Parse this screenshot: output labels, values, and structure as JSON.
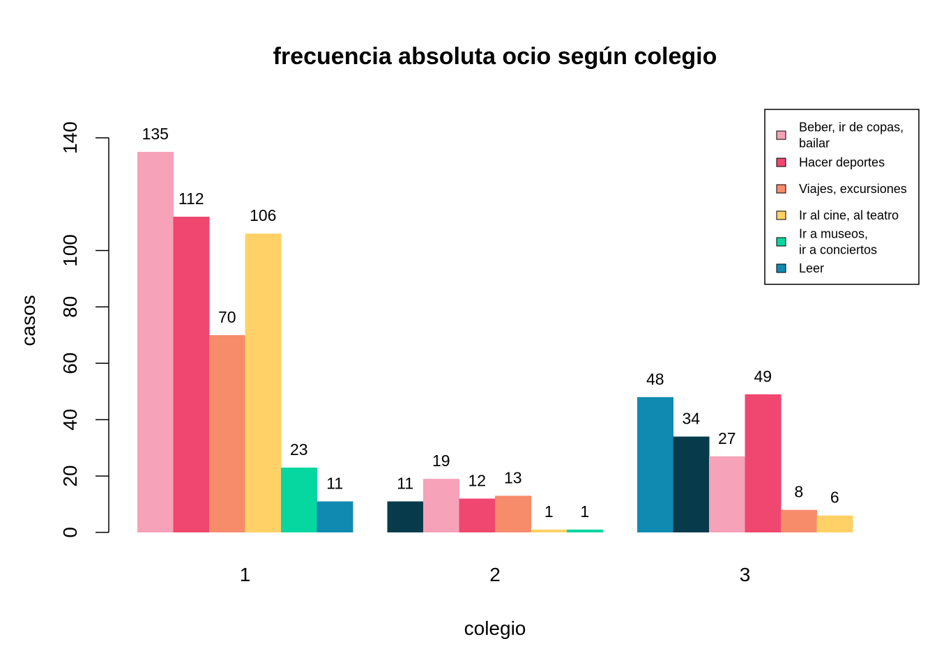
{
  "chart_data": {
    "type": "bar",
    "title": "frecuencia absoluta ocio según colegio",
    "xlabel": "colegio",
    "ylabel": "casos",
    "ylim": [
      0,
      140
    ],
    "yticks": [
      0,
      20,
      40,
      60,
      80,
      100,
      140
    ],
    "grid": false,
    "legend_position": "top-right",
    "categories": [
      "1",
      "2",
      "3"
    ],
    "groups": [
      {
        "category": "1",
        "bars": [
          {
            "value": 135,
            "color": "#F6A2B8"
          },
          {
            "value": 112,
            "color": "#EF476F"
          },
          {
            "value": 70,
            "color": "#F78C6B"
          },
          {
            "value": 106,
            "color": "#FFD166"
          },
          {
            "value": 23,
            "color": "#06D6A0"
          },
          {
            "value": 11,
            "color": "#118AB2"
          }
        ]
      },
      {
        "category": "2",
        "bars": [
          {
            "value": 11,
            "color": "#073B4C"
          },
          {
            "value": 19,
            "color": "#F6A2B8"
          },
          {
            "value": 12,
            "color": "#EF476F"
          },
          {
            "value": 13,
            "color": "#F78C6B"
          },
          {
            "value": 1,
            "color": "#FFD166"
          },
          {
            "value": 1,
            "color": "#06D6A0"
          }
        ]
      },
      {
        "category": "3",
        "bars": [
          {
            "value": 48,
            "color": "#118AB2"
          },
          {
            "value": 34,
            "color": "#073B4C"
          },
          {
            "value": 27,
            "color": "#F6A2B8"
          },
          {
            "value": 49,
            "color": "#EF476F"
          },
          {
            "value": 8,
            "color": "#F78C6B"
          },
          {
            "value": 6,
            "color": "#FFD166"
          }
        ]
      }
    ],
    "legend": [
      {
        "lines": [
          "Beber, ir de copas,",
          "bailar"
        ],
        "color": "#F6A2B8"
      },
      {
        "lines": [
          "Hacer deportes"
        ],
        "color": "#EF476F"
      },
      {
        "lines": [
          "Viajes, excursiones"
        ],
        "color": "#F78C6B"
      },
      {
        "lines": [
          "Ir al cine, al teatro"
        ],
        "color": "#FFD166"
      },
      {
        "lines": [
          "Ir a museos,",
          "ir a conciertos"
        ],
        "color": "#06D6A0"
      },
      {
        "lines": [
          "Leer"
        ],
        "color": "#118AB2"
      }
    ]
  }
}
